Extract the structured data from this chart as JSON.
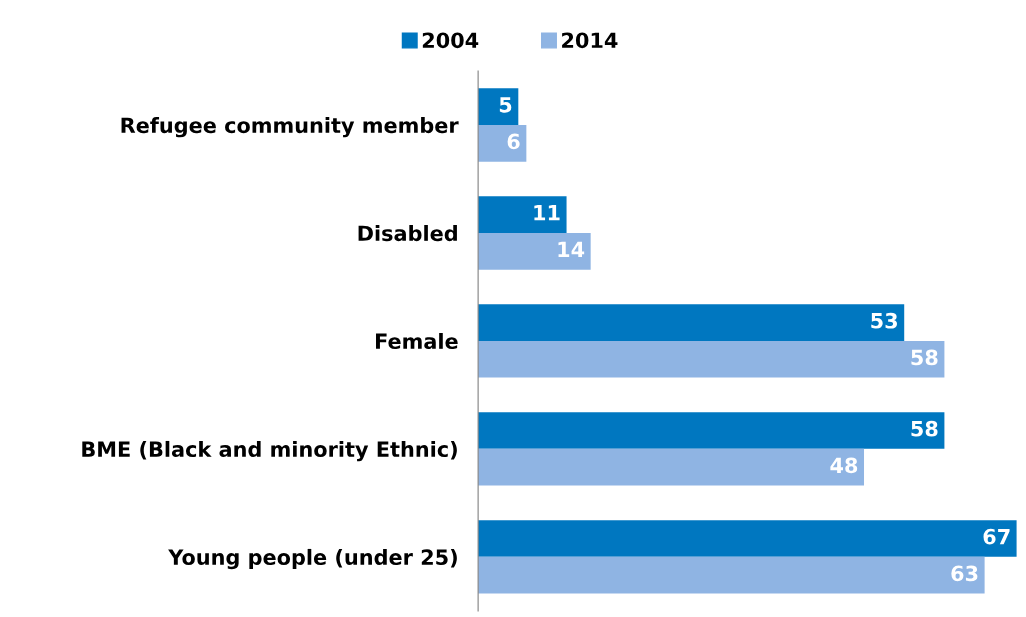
{
  "chart_data": {
    "type": "bar",
    "orientation": "horizontal",
    "categories": [
      "Refugee community member",
      "Disabled",
      "Female",
      "BME (Black and minority Ethnic)",
      "Young people (under 25)"
    ],
    "series": [
      {
        "name": "2004",
        "color": "#0077c0",
        "values": [
          5,
          11,
          53,
          58,
          67
        ]
      },
      {
        "name": "2014",
        "color": "#8fb4e3",
        "values": [
          6,
          14,
          58,
          48,
          63
        ]
      }
    ],
    "xlim": [
      0,
      67
    ],
    "tick_labels": "y",
    "data_labels": true,
    "legend": "top",
    "grid": false
  }
}
